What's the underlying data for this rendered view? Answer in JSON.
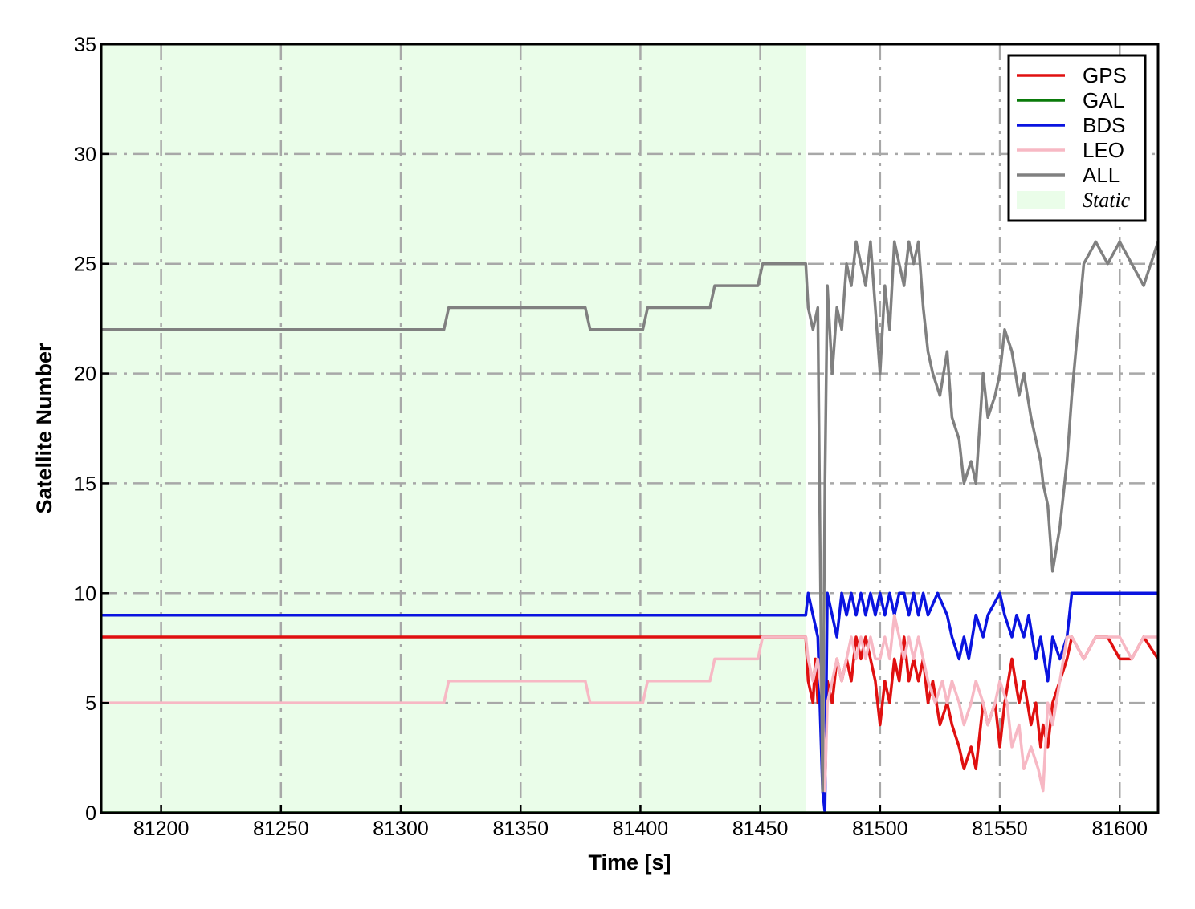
{
  "chart_data": {
    "type": "line",
    "title": "",
    "xlabel": "Time [s]",
    "ylabel": "Satellite Number",
    "xlim": [
      81175,
      81616
    ],
    "ylim": [
      0,
      35
    ],
    "xticks": [
      81200,
      81250,
      81300,
      81350,
      81400,
      81450,
      81500,
      81550,
      81600
    ],
    "yticks": [
      0,
      5,
      10,
      15,
      20,
      25,
      30,
      35
    ],
    "grid": true,
    "legend_position": "top-right",
    "shaded_region": {
      "name": "Static",
      "x": [
        81175,
        81469
      ],
      "color": "#eafde9"
    },
    "series": [
      {
        "name": "GPS",
        "color": "#e01010",
        "x": [
          81175,
          81450,
          81469,
          81470,
          81472,
          81473,
          81474,
          81475,
          81476,
          81477,
          81478,
          81480,
          81482,
          81484,
          81486,
          81488,
          81490,
          81492,
          81494,
          81496,
          81498,
          81500,
          81502,
          81504,
          81506,
          81508,
          81510,
          81512,
          81514,
          81516,
          81518,
          81520,
          81522,
          81525,
          81528,
          81530,
          81533,
          81535,
          81538,
          81540,
          81543,
          81545,
          81548,
          81550,
          81552,
          81555,
          81558,
          81560,
          81563,
          81565,
          81567,
          81568,
          81570,
          81572,
          81575,
          81578,
          81580,
          81585,
          81590,
          81595,
          81600,
          81605,
          81610,
          81616
        ],
        "values": [
          8,
          8,
          8,
          6,
          5,
          7,
          5,
          6,
          4,
          1,
          6,
          5,
          7,
          6,
          7,
          6,
          8,
          7,
          8,
          7,
          6,
          4,
          6,
          5,
          7,
          6,
          8,
          6,
          7,
          6,
          7,
          5,
          6,
          4,
          5,
          4,
          3,
          2,
          3,
          2,
          5,
          4,
          5,
          3,
          5,
          7,
          5,
          6,
          4,
          5,
          3,
          4,
          3,
          5,
          6,
          7,
          8,
          7,
          8,
          8,
          7,
          7,
          8,
          7
        ]
      },
      {
        "name": "GAL",
        "color": "#0a7a0a",
        "x": [
          81175,
          81616
        ],
        "values": [
          0,
          0
        ]
      },
      {
        "name": "BDS",
        "color": "#0a14e0",
        "x": [
          81175,
          81469,
          81470,
          81472,
          81474,
          81476,
          81477,
          81478,
          81480,
          81482,
          81484,
          81486,
          81488,
          81490,
          81492,
          81494,
          81496,
          81498,
          81500,
          81502,
          81504,
          81506,
          81508,
          81510,
          81512,
          81514,
          81516,
          81518,
          81520,
          81524,
          81528,
          81530,
          81533,
          81535,
          81537,
          81540,
          81543,
          81545,
          81550,
          81552,
          81555,
          81557,
          81560,
          81562,
          81565,
          81567,
          81570,
          81572,
          81575,
          81578,
          81580,
          81600,
          81616
        ],
        "values": [
          9,
          9,
          10,
          9,
          8,
          1,
          0,
          10,
          9,
          8,
          10,
          9,
          10,
          9,
          10,
          9,
          10,
          9,
          10,
          9,
          10,
          9,
          10,
          10,
          9,
          10,
          9,
          10,
          9,
          10,
          9,
          8,
          7,
          8,
          7,
          9,
          8,
          9,
          10,
          9,
          8,
          9,
          8,
          9,
          7,
          8,
          6,
          8,
          7,
          8,
          10,
          10,
          10
        ]
      },
      {
        "name": "LEO",
        "color": "#f7b8c4",
        "x": [
          81175,
          81318,
          81320,
          81377,
          81379,
          81401,
          81403,
          81429,
          81431,
          81449,
          81451,
          81469,
          81470,
          81472,
          81474,
          81476,
          81477,
          81478,
          81480,
          81482,
          81484,
          81486,
          81488,
          81490,
          81492,
          81494,
          81496,
          81498,
          81500,
          81502,
          81504,
          81506,
          81508,
          81510,
          81512,
          81514,
          81516,
          81518,
          81520,
          81523,
          81526,
          81528,
          81530,
          81533,
          81535,
          81538,
          81540,
          81543,
          81545,
          81548,
          81550,
          81553,
          81555,
          81558,
          81560,
          81563,
          81566,
          81568,
          81570,
          81572,
          81575,
          81578,
          81580,
          81585,
          81590,
          81600,
          81605,
          81610,
          81616
        ],
        "values": [
          5,
          5,
          6,
          6,
          5,
          5,
          6,
          6,
          7,
          7,
          8,
          8,
          7,
          6,
          7,
          5,
          1,
          5,
          6,
          7,
          6,
          7,
          8,
          7,
          8,
          7,
          8,
          7,
          7,
          8,
          7,
          9,
          8,
          7,
          8,
          7,
          8,
          7,
          6,
          5,
          6,
          5,
          6,
          5,
          4,
          5,
          6,
          5,
          4,
          5,
          6,
          5,
          3,
          4,
          2,
          3,
          2,
          1,
          5,
          4,
          6,
          8,
          8,
          7,
          8,
          8,
          7,
          8,
          8
        ]
      },
      {
        "name": "ALL",
        "color": "#808080",
        "x": [
          81175,
          81318,
          81320,
          81377,
          81379,
          81401,
          81403,
          81429,
          81431,
          81449,
          81451,
          81469,
          81470,
          81472,
          81474,
          81475,
          81476,
          81477,
          81478,
          81480,
          81482,
          81484,
          81486,
          81488,
          81490,
          81492,
          81494,
          81496,
          81498,
          81500,
          81502,
          81504,
          81506,
          81508,
          81510,
          81512,
          81514,
          81516,
          81518,
          81520,
          81522,
          81525,
          81528,
          81530,
          81533,
          81535,
          81538,
          81540,
          81543,
          81545,
          81548,
          81550,
          81552,
          81555,
          81558,
          81560,
          81563,
          81565,
          81567,
          81568,
          81570,
          81572,
          81575,
          81578,
          81580,
          81585,
          81590,
          81595,
          81600,
          81605,
          81610,
          81616
        ],
        "values": [
          22,
          22,
          23,
          23,
          22,
          22,
          23,
          23,
          24,
          24,
          25,
          25,
          23,
          22,
          23,
          12,
          1,
          15,
          24,
          20,
          23,
          22,
          25,
          24,
          26,
          25,
          24,
          26,
          23,
          20,
          24,
          22,
          26,
          25,
          24,
          26,
          25,
          26,
          23,
          21,
          20,
          19,
          21,
          18,
          17,
          15,
          16,
          15,
          20,
          18,
          19,
          20,
          22,
          21,
          19,
          20,
          18,
          17,
          16,
          15,
          14,
          11,
          13,
          16,
          19,
          25,
          26,
          25,
          26,
          25,
          24,
          26
        ]
      }
    ]
  }
}
